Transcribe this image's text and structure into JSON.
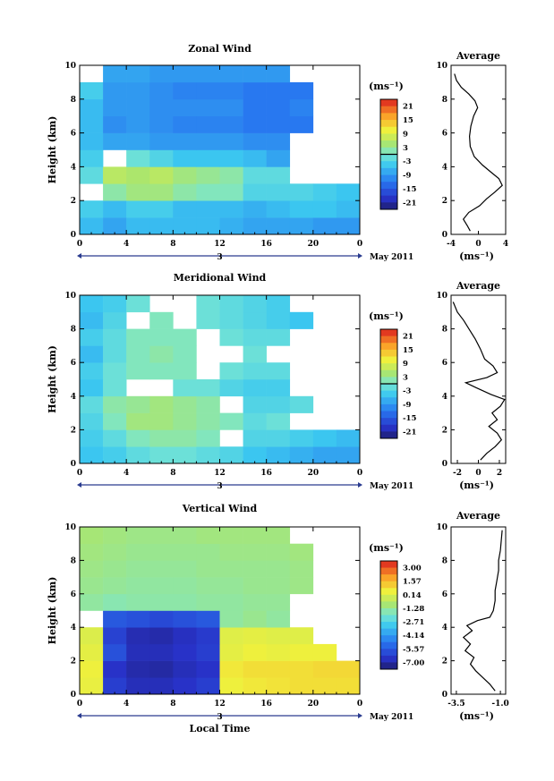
{
  "chart_data": [
    {
      "type": "heatmap",
      "title": "Zonal Wind",
      "ylabel": "Height (km)",
      "unit_label": "(ms⁻¹)",
      "x_ticks": [
        "0",
        "4",
        "8",
        "12",
        "16",
        "20",
        "0"
      ],
      "date_label": "3",
      "date_suffix": "May 2011",
      "xlim": [
        0,
        24
      ],
      "ylim": [
        0,
        10
      ],
      "y_ticks": [
        "0",
        "2",
        "4",
        "6",
        "8",
        "10"
      ],
      "colorbar_ticks": [
        "21",
        "15",
        "9",
        "3",
        "-3",
        "-9",
        "-15",
        "-21"
      ],
      "colorbar_range": [
        -24,
        24
      ],
      "colorbar_zero_line": true,
      "profile": {
        "title": "Average",
        "xlabel": "(ms⁻¹)",
        "x_ticks": [
          "-4",
          "0",
          "4"
        ],
        "xlim": [
          -4,
          4
        ],
        "points": [
          [
            -1.2,
            0.2
          ],
          [
            -1.6,
            0.5
          ],
          [
            -2.2,
            0.9
          ],
          [
            -1.4,
            1.3
          ],
          [
            0.2,
            1.7
          ],
          [
            1.2,
            2.1
          ],
          [
            2.4,
            2.5
          ],
          [
            3.5,
            2.9
          ],
          [
            3.0,
            3.3
          ],
          [
            1.8,
            3.7
          ],
          [
            0.6,
            4.1
          ],
          [
            -0.6,
            4.6
          ],
          [
            -1.2,
            5.2
          ],
          [
            -1.3,
            5.8
          ],
          [
            -1.1,
            6.4
          ],
          [
            -0.7,
            7.0
          ],
          [
            -0.1,
            7.5
          ],
          [
            -0.5,
            7.9
          ],
          [
            -1.4,
            8.3
          ],
          [
            -2.5,
            8.7
          ],
          [
            -3.2,
            9.1
          ],
          [
            -3.5,
            9.5
          ]
        ]
      },
      "sample_field": {
        "x": [
          1,
          3,
          5,
          7,
          9,
          11,
          13,
          15,
          17,
          19,
          21,
          23
        ],
        "y": [
          0.5,
          1.5,
          2.5,
          3.5,
          4.5,
          5.5,
          6.5,
          7.5,
          8.5,
          9.5
        ],
        "values": [
          [
            -6,
            -8,
            -6,
            -6,
            -6,
            -6,
            -7,
            -8,
            -8,
            -8,
            -9,
            -9
          ],
          [
            -4,
            -6,
            -4,
            -4,
            -6,
            -6,
            -6,
            -7,
            -6,
            -5,
            -5,
            -6
          ],
          [
            0,
            2,
            4,
            4,
            2,
            1,
            1,
            -3,
            -3,
            -3,
            -4,
            -5
          ],
          [
            -2,
            6,
            5,
            6,
            4,
            3,
            2,
            -2,
            -2,
            0,
            0,
            0
          ],
          [
            -4,
            0,
            -1,
            -3,
            -5,
            -5,
            -5,
            -6,
            -8,
            0,
            0,
            0
          ],
          [
            -6,
            -8,
            -8,
            -9,
            -9,
            -9,
            -9,
            -10,
            -10,
            0,
            0,
            0
          ],
          [
            -6,
            -10,
            -9,
            -10,
            -11,
            -11,
            -11,
            -12,
            -12,
            -12,
            0,
            0
          ],
          [
            -6,
            -9,
            -9,
            -10,
            -10,
            -10,
            -10,
            -12,
            -12,
            -11,
            0,
            0
          ],
          [
            -4,
            -9,
            -9,
            -10,
            -11,
            -11,
            -11,
            -12,
            -12,
            -12,
            0,
            0
          ],
          [
            0,
            -8,
            -8,
            -9,
            -9,
            -9,
            -9,
            -9,
            -9,
            0,
            0,
            0
          ]
        ]
      }
    },
    {
      "type": "heatmap",
      "title": "Meridional Wind",
      "ylabel": "Height (km)",
      "unit_label": "(ms⁻¹)",
      "x_ticks": [
        "0",
        "4",
        "8",
        "12",
        "16",
        "20",
        "0"
      ],
      "date_label": "3",
      "date_suffix": "May 2011",
      "xlim": [
        0,
        24
      ],
      "ylim": [
        0,
        10
      ],
      "y_ticks": [
        "0",
        "2",
        "4",
        "6",
        "8",
        "10"
      ],
      "colorbar_ticks": [
        "21",
        "15",
        "9",
        "3",
        "-3",
        "-9",
        "-15",
        "-21"
      ],
      "colorbar_range": [
        -24,
        24
      ],
      "colorbar_zero_line": true,
      "profile": {
        "title": "Average",
        "xlabel": "(ms⁻¹)",
        "x_ticks": [
          "-2",
          "0",
          "2"
        ],
        "xlim": [
          -2.6,
          2.6
        ],
        "points": [
          [
            0.2,
            0.2
          ],
          [
            0.8,
            0.6
          ],
          [
            1.6,
            1.0
          ],
          [
            2.2,
            1.4
          ],
          [
            1.8,
            1.8
          ],
          [
            1.0,
            2.2
          ],
          [
            1.8,
            2.6
          ],
          [
            1.3,
            3.0
          ],
          [
            2.1,
            3.4
          ],
          [
            2.5,
            3.8
          ],
          [
            1.2,
            4.1
          ],
          [
            -0.2,
            4.5
          ],
          [
            -1.2,
            4.8
          ],
          [
            0.8,
            5.1
          ],
          [
            1.8,
            5.4
          ],
          [
            1.4,
            5.8
          ],
          [
            0.6,
            6.2
          ],
          [
            0.2,
            6.8
          ],
          [
            -0.3,
            7.4
          ],
          [
            -0.9,
            8.0
          ],
          [
            -1.4,
            8.5
          ],
          [
            -2.0,
            9.0
          ],
          [
            -2.4,
            9.6
          ]
        ]
      },
      "sample_field": {
        "x": [
          1,
          3,
          5,
          7,
          9,
          11,
          13,
          15,
          17,
          19,
          21,
          23
        ],
        "y": [
          0.5,
          1.5,
          2.5,
          3.5,
          4.5,
          5.5,
          6.5,
          7.5,
          8.5,
          9.5
        ],
        "values": [
          [
            -5,
            -4,
            -2,
            -1,
            -1,
            -2,
            -3,
            -5,
            -6,
            -7,
            -8,
            -8
          ],
          [
            -4,
            -2,
            1,
            2,
            2,
            1,
            0,
            -3,
            -3,
            -4,
            -5,
            -6
          ],
          [
            -3,
            1,
            4,
            4,
            3,
            2,
            1,
            -2,
            -1,
            0,
            0,
            0
          ],
          [
            -2,
            2,
            3,
            4,
            3,
            2,
            0,
            -3,
            -3,
            -2,
            0,
            0
          ],
          [
            -5,
            -1,
            0,
            0,
            -1,
            -1,
            -3,
            -4,
            -4,
            0,
            0,
            0
          ],
          [
            -4,
            -1,
            1,
            1,
            1,
            0,
            -1,
            -2,
            -2,
            0,
            0,
            0
          ],
          [
            -6,
            -2,
            1,
            2,
            1,
            0,
            0,
            -1,
            0,
            0,
            0,
            0
          ],
          [
            -4,
            -2,
            1,
            1,
            1,
            0,
            -1,
            -2,
            -2,
            0,
            0,
            0
          ],
          [
            -6,
            -3,
            0,
            1,
            0,
            -1,
            -2,
            -3,
            -4,
            -5,
            0,
            0
          ],
          [
            -5,
            -4,
            -1,
            0,
            0,
            -1,
            -2,
            -3,
            -4,
            0,
            0,
            0
          ]
        ]
      }
    },
    {
      "type": "heatmap",
      "title": "Vertical Wind",
      "ylabel": "Height (km)",
      "xlabel": "Local Time",
      "unit_label": "(ms⁻¹)",
      "x_ticks": [
        "0",
        "4",
        "8",
        "12",
        "16",
        "20",
        "0"
      ],
      "date_label": "3",
      "date_suffix": "May 2011",
      "xlim": [
        0,
        24
      ],
      "ylim": [
        0,
        10
      ],
      "y_ticks": [
        "0",
        "2",
        "4",
        "6",
        "8",
        "10"
      ],
      "colorbar_ticks": [
        "3.00",
        "1.57",
        "0.14",
        "-1.28",
        "-2.71",
        "-4.14",
        "-5.57",
        "-7.00"
      ],
      "colorbar_range": [
        -8.0,
        4.0
      ],
      "colorbar_zero_line": false,
      "profile": {
        "title": "Average",
        "xlabel": "(ms⁻¹)",
        "x_ticks": [
          "-3.5",
          "-1.0"
        ],
        "xlim": [
          -3.8,
          -0.7
        ],
        "points": [
          [
            -1.3,
            0.2
          ],
          [
            -1.6,
            0.6
          ],
          [
            -2.0,
            1.0
          ],
          [
            -2.4,
            1.4
          ],
          [
            -2.7,
            1.8
          ],
          [
            -2.5,
            2.2
          ],
          [
            -3.0,
            2.6
          ],
          [
            -2.7,
            3.0
          ],
          [
            -3.1,
            3.4
          ],
          [
            -2.6,
            3.8
          ],
          [
            -2.9,
            4.1
          ],
          [
            -2.3,
            4.4
          ],
          [
            -1.6,
            4.6
          ],
          [
            -1.4,
            5.0
          ],
          [
            -1.3,
            5.6
          ],
          [
            -1.3,
            6.2
          ],
          [
            -1.2,
            6.8
          ],
          [
            -1.1,
            7.4
          ],
          [
            -1.1,
            8.0
          ],
          [
            -1.0,
            8.6
          ],
          [
            -0.95,
            9.2
          ],
          [
            -0.9,
            9.8
          ]
        ]
      },
      "sample_field": {
        "x": [
          1,
          3,
          5,
          7,
          9,
          11,
          13,
          15,
          17,
          19,
          21,
          23
        ],
        "y": [
          0.5,
          1.5,
          2.5,
          3.5,
          4.5,
          5.5,
          6.5,
          7.5,
          8.5,
          9.5
        ],
        "values": [
          [
            0.5,
            -6.5,
            -7.0,
            -7.0,
            -6.8,
            -6.5,
            0.6,
            0.8,
            0.9,
            1.0,
            1.0,
            1.0
          ],
          [
            0.6,
            -6.8,
            -7.2,
            -7.3,
            -7.0,
            -6.8,
            0.8,
            1.0,
            1.0,
            1.0,
            1.1,
            1.1
          ],
          [
            0.4,
            -6.0,
            -7.0,
            -7.0,
            -6.8,
            -6.5,
            0.4,
            0.6,
            0.5,
            0.6,
            0.6,
            0.0
          ],
          [
            0.2,
            -6.4,
            -7.1,
            -7.2,
            -6.9,
            -6.6,
            0.3,
            0.4,
            0.3,
            0.3,
            0.0,
            0.0
          ],
          [
            0.0,
            -5.8,
            -6.0,
            -6.2,
            -6.0,
            -5.8,
            -1.4,
            -1.2,
            -1.4,
            0.0,
            0.0,
            0.0
          ],
          [
            -1.4,
            -1.6,
            -1.5,
            -1.5,
            -1.5,
            -1.4,
            -1.4,
            -1.3,
            -1.3,
            0.0,
            0.0,
            0.0
          ],
          [
            -1.2,
            -1.3,
            -1.4,
            -1.4,
            -1.4,
            -1.3,
            -1.3,
            -1.2,
            -1.2,
            -1.1,
            0.0,
            0.0
          ],
          [
            -1.1,
            -1.2,
            -1.3,
            -1.3,
            -1.3,
            -1.2,
            -1.2,
            -1.2,
            -1.2,
            -1.1,
            0.0,
            0.0
          ],
          [
            -1.0,
            -1.1,
            -1.2,
            -1.2,
            -1.2,
            -1.2,
            -1.1,
            -1.1,
            -1.1,
            -1.0,
            0.0,
            0.0
          ],
          [
            -0.9,
            -1.0,
            -1.1,
            -1.1,
            -1.1,
            -1.0,
            -1.0,
            -1.0,
            -1.0,
            0.0,
            0.0,
            0.0
          ]
        ]
      }
    }
  ]
}
